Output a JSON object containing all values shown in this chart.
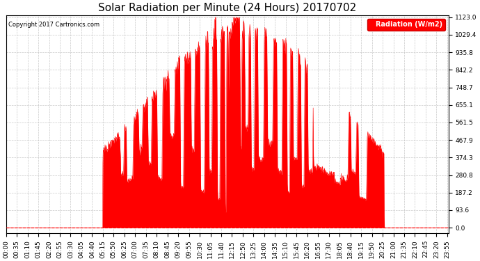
{
  "title": "Solar Radiation per Minute (24 Hours) 20170702",
  "copyright_text": "Copyright 2017 Cartronics.com",
  "ylabel": "Radiation (W/m2)",
  "y_tick_values": [
    0.0,
    93.6,
    187.2,
    280.8,
    374.3,
    467.9,
    561.5,
    655.1,
    748.7,
    842.2,
    935.8,
    1029.4,
    1123.0
  ],
  "bar_color": "#FF0000",
  "background_color": "#FFFFFF",
  "plot_bg_color": "#FFFFFF",
  "grid_color": "#AAAAAA",
  "dashed_line_color": "#FF0000",
  "legend_bg": "#FF0000",
  "legend_text_color": "#FFFFFF",
  "title_fontsize": 11,
  "tick_fontsize": 6.5,
  "ymax": 1123.0,
  "ymin": -30,
  "tick_interval_minutes": 35
}
